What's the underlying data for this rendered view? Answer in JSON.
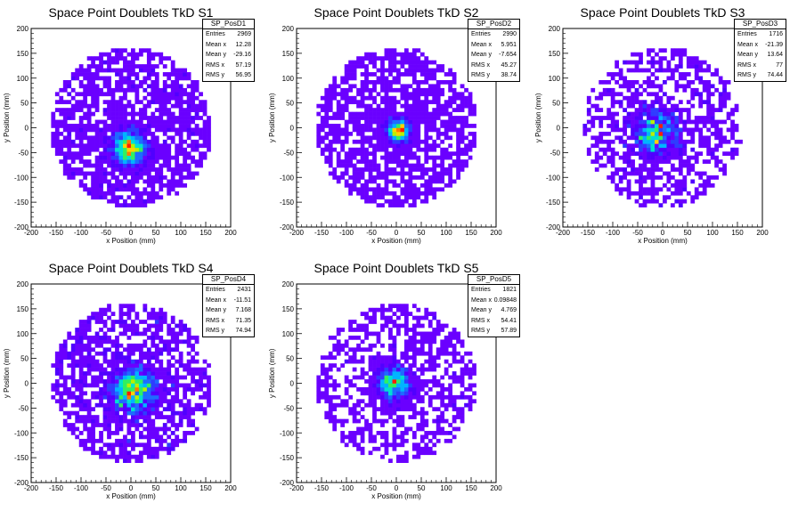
{
  "chart_data": [
    {
      "type": "heatmap",
      "title": "Space Point Doublets TkD S1",
      "xlabel": "x Position (mm)",
      "ylabel": "y Position (mm)",
      "xlim": [
        -200,
        200
      ],
      "ylim": [
        -200,
        200
      ],
      "xticks": [
        "-200",
        "-150",
        "-100",
        "-50",
        "0",
        "50",
        "100",
        "150",
        "200"
      ],
      "yticks": [
        "-200",
        "-150",
        "-100",
        "-50",
        "0",
        "50",
        "100",
        "150",
        "200"
      ],
      "stats": {
        "name": "SP_PosD1",
        "rows": [
          {
            "label": "Entries",
            "value": "2969"
          },
          {
            "label": "Mean x",
            "value": "12.28"
          },
          {
            "label": "Mean y",
            "value": "-29.16"
          },
          {
            "label": "RMS x",
            "value": "57.19"
          },
          {
            "label": "RMS y",
            "value": "56.95"
          }
        ]
      },
      "entries": 2969,
      "mean_x": 12.28,
      "mean_y": -29.16,
      "rms_x": 57.19,
      "rms_y": 56.95,
      "hotspot": [
        -5,
        -40
      ],
      "seed": 11
    },
    {
      "type": "heatmap",
      "title": "Space Point Doublets TkD S2",
      "xlabel": "x Position (mm)",
      "ylabel": "y Position (mm)",
      "xlim": [
        -200,
        200
      ],
      "ylim": [
        -200,
        200
      ],
      "xticks": [
        "-200",
        "-150",
        "-100",
        "-50",
        "0",
        "50",
        "100",
        "150",
        "200"
      ],
      "yticks": [
        "-200",
        "-150",
        "-100",
        "-50",
        "0",
        "50",
        "100",
        "150",
        "200"
      ],
      "stats": {
        "name": "SP_PosD2",
        "rows": [
          {
            "label": "Entries",
            "value": "2990"
          },
          {
            "label": "Mean x",
            "value": "5.951"
          },
          {
            "label": "Mean y",
            "value": "-7.654"
          },
          {
            "label": "RMS x",
            "value": "45.27"
          },
          {
            "label": "RMS y",
            "value": "38.74"
          }
        ]
      },
      "entries": 2990,
      "mean_x": 5.951,
      "mean_y": -7.654,
      "rms_x": 45.27,
      "rms_y": 38.74,
      "hotspot": [
        5,
        -5
      ],
      "seed": 23
    },
    {
      "type": "heatmap",
      "title": "Space Point Doublets TkD S3",
      "xlabel": "x Position (mm)",
      "ylabel": "y Position (mm)",
      "xlim": [
        -200,
        200
      ],
      "ylim": [
        -200,
        200
      ],
      "xticks": [
        "-200",
        "-150",
        "-100",
        "-50",
        "0",
        "50",
        "100",
        "150",
        "200"
      ],
      "yticks": [
        "-200",
        "-150",
        "-100",
        "-50",
        "0",
        "50",
        "100",
        "150",
        "200"
      ],
      "stats": {
        "name": "SP_PosD3",
        "rows": [
          {
            "label": "Entries",
            "value": "1716"
          },
          {
            "label": "Mean x",
            "value": "-21.39"
          },
          {
            "label": "Mean y",
            "value": "13.64"
          },
          {
            "label": "RMS x",
            "value": "77"
          },
          {
            "label": "RMS y",
            "value": "74.44"
          }
        ]
      },
      "entries": 1716,
      "mean_x": -21.39,
      "mean_y": 13.64,
      "rms_x": 77,
      "rms_y": 74.44,
      "hotspot": [
        -15,
        -10
      ],
      "seed": 37
    },
    {
      "type": "heatmap",
      "title": "Space Point Doublets TkD S4",
      "xlabel": "x Position (mm)",
      "ylabel": "y Position (mm)",
      "xlim": [
        -200,
        200
      ],
      "ylim": [
        -200,
        200
      ],
      "xticks": [
        "-200",
        "-150",
        "-100",
        "-50",
        "0",
        "50",
        "100",
        "150",
        "200"
      ],
      "yticks": [
        "-200",
        "-150",
        "-100",
        "-50",
        "0",
        "50",
        "100",
        "150",
        "200"
      ],
      "stats": {
        "name": "SP_PosD4",
        "rows": [
          {
            "label": "Entries",
            "value": "2431"
          },
          {
            "label": "Mean x",
            "value": "-11.51"
          },
          {
            "label": "Mean y",
            "value": "7.168"
          },
          {
            "label": "RMS x",
            "value": "71.35"
          },
          {
            "label": "RMS y",
            "value": "74.94"
          }
        ]
      },
      "entries": 2431,
      "mean_x": -11.51,
      "mean_y": 7.168,
      "rms_x": 71.35,
      "rms_y": 74.94,
      "hotspot": [
        5,
        -15
      ],
      "seed": 51
    },
    {
      "type": "heatmap",
      "title": "Space Point Doublets TkD S5",
      "xlabel": "x Position (mm)",
      "ylabel": "y Position (mm)",
      "xlim": [
        -200,
        200
      ],
      "ylim": [
        -200,
        200
      ],
      "xticks": [
        "-200",
        "-150",
        "-100",
        "-50",
        "0",
        "50",
        "100",
        "150",
        "200"
      ],
      "yticks": [
        "-200",
        "-150",
        "-100",
        "-50",
        "0",
        "50",
        "100",
        "150",
        "200"
      ],
      "stats": {
        "name": "SP_PosD5",
        "rows": [
          {
            "label": "Entries",
            "value": "1821"
          },
          {
            "label": "Mean x",
            "value": "0.09848"
          },
          {
            "label": "Mean y",
            "value": "4.769"
          },
          {
            "label": "RMS x",
            "value": "54.41"
          },
          {
            "label": "RMS y",
            "value": "57.89"
          }
        ]
      },
      "entries": 1821,
      "mean_x": 0.09848,
      "mean_y": 4.769,
      "rms_x": 54.41,
      "rms_y": 57.89,
      "hotspot": [
        -5,
        0
      ],
      "seed": 67
    }
  ]
}
